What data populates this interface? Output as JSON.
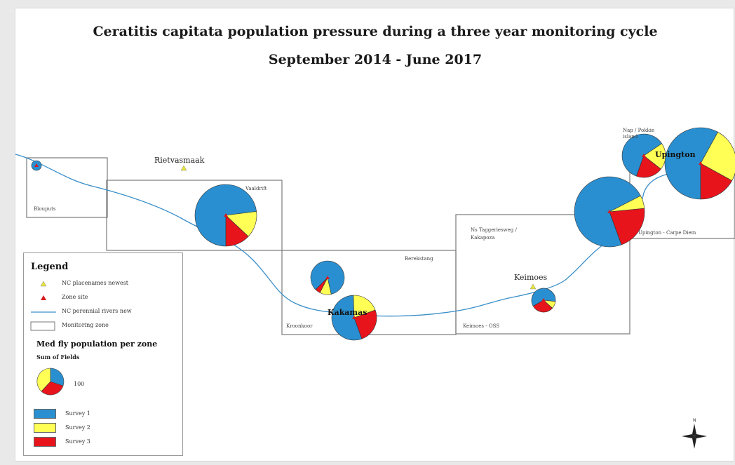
{
  "title": "Ceratitis capitata population pressure during a three year monitoring cycle",
  "subtitle": "September 2014 - June 2017",
  "places": {
    "rietvasmaak": "Rietvasmaak",
    "keimoes": "Keimoes",
    "kakamas": "Kakamas",
    "upington": "Upington",
    "nap_pokkie_label": "Nap / Pokkie island"
  },
  "zones": {
    "blouputs": "Blouputs",
    "vaalrift": "Vaaldrift",
    "beskustang": "Berekstang",
    "kroonkoor": "Kroonkoor",
    "tuggerie": "Ns Taggeriesweg / Kakapoza",
    "keimoes_oss": "Keimoes - OSS",
    "upington_carpe": "Upington - Carpe Diem"
  },
  "legend": {
    "title": "Legend",
    "items": [
      {
        "label": "NC placenames newest",
        "symbol": "yellow-triangle"
      },
      {
        "label": "Zone site",
        "symbol": "red-triangle"
      },
      {
        "label": "NC perennial rivers new",
        "symbol": "blue-line"
      },
      {
        "label": "Monitoring zone",
        "symbol": "white-rectangle"
      }
    ],
    "subtitle": "Med fly population per zone",
    "sum_label": "Sum of Fields",
    "size_value": "100",
    "surveys": [
      {
        "label": "Survey 1",
        "color": "#2a8fd0"
      },
      {
        "label": "Survey 2",
        "color": "#ffff55"
      },
      {
        "label": "Survey 3",
        "color": "#e8141c"
      }
    ]
  },
  "chart_data": {
    "type": "pie",
    "series_names": [
      "Survey 1",
      "Survey 2",
      "Survey 3"
    ],
    "pies": [
      {
        "zone": "Blouputs",
        "values": [
          100,
          0,
          0
        ]
      },
      {
        "zone": "Vaaldrift",
        "values": [
          73,
          14,
          13
        ]
      },
      {
        "zone": "Berekstang",
        "values": [
          84,
          11,
          5
        ]
      },
      {
        "zone": "Kroonkoor",
        "values": [
          55,
          20,
          25
        ]
      },
      {
        "zone": "Keimoes - OSS",
        "values": [
          60,
          10,
          30
        ]
      },
      {
        "zone": "Upington - Carpe Diem",
        "values": [
          73,
          6,
          21
        ]
      },
      {
        "zone": "Nap / Pokkie island",
        "values": [
          60,
          20,
          20
        ]
      },
      {
        "zone": "Upington",
        "values": [
          58,
          25,
          17
        ]
      }
    ]
  }
}
